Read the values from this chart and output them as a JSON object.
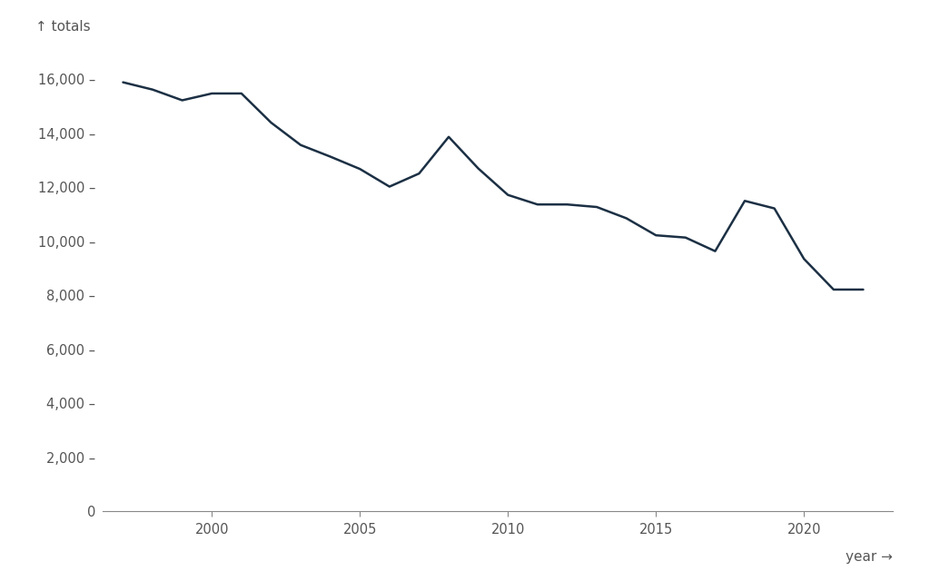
{
  "years": [
    1997,
    1998,
    1999,
    2000,
    2001,
    2002,
    2003,
    2004,
    2005,
    2006,
    2007,
    2008,
    2009,
    2010,
    2011,
    2012,
    2013,
    2014,
    2015,
    2016,
    2017,
    2018,
    2019,
    2020,
    2021,
    2022
  ],
  "values": [
    15889,
    15618,
    15222,
    15475,
    15475,
    14396,
    13566,
    13136,
    12679,
    12025,
    12510,
    13867,
    12696,
    11717,
    11364,
    11364,
    11270,
    10853,
    10222,
    10138,
    9634,
    11497,
    11218,
    9348,
    8212,
    8212
  ],
  "line_color": "#1c3044",
  "line_width": 1.8,
  "ylabel": "↑ totals",
  "xlabel": "year →",
  "ylim": [
    0,
    17000
  ],
  "ytick_step": 2000,
  "xticks": [
    2000,
    2005,
    2010,
    2015,
    2020
  ],
  "background_color": "#ffffff",
  "axis_color": "#888888",
  "tick_color": "#888888",
  "font_color": "#555555"
}
